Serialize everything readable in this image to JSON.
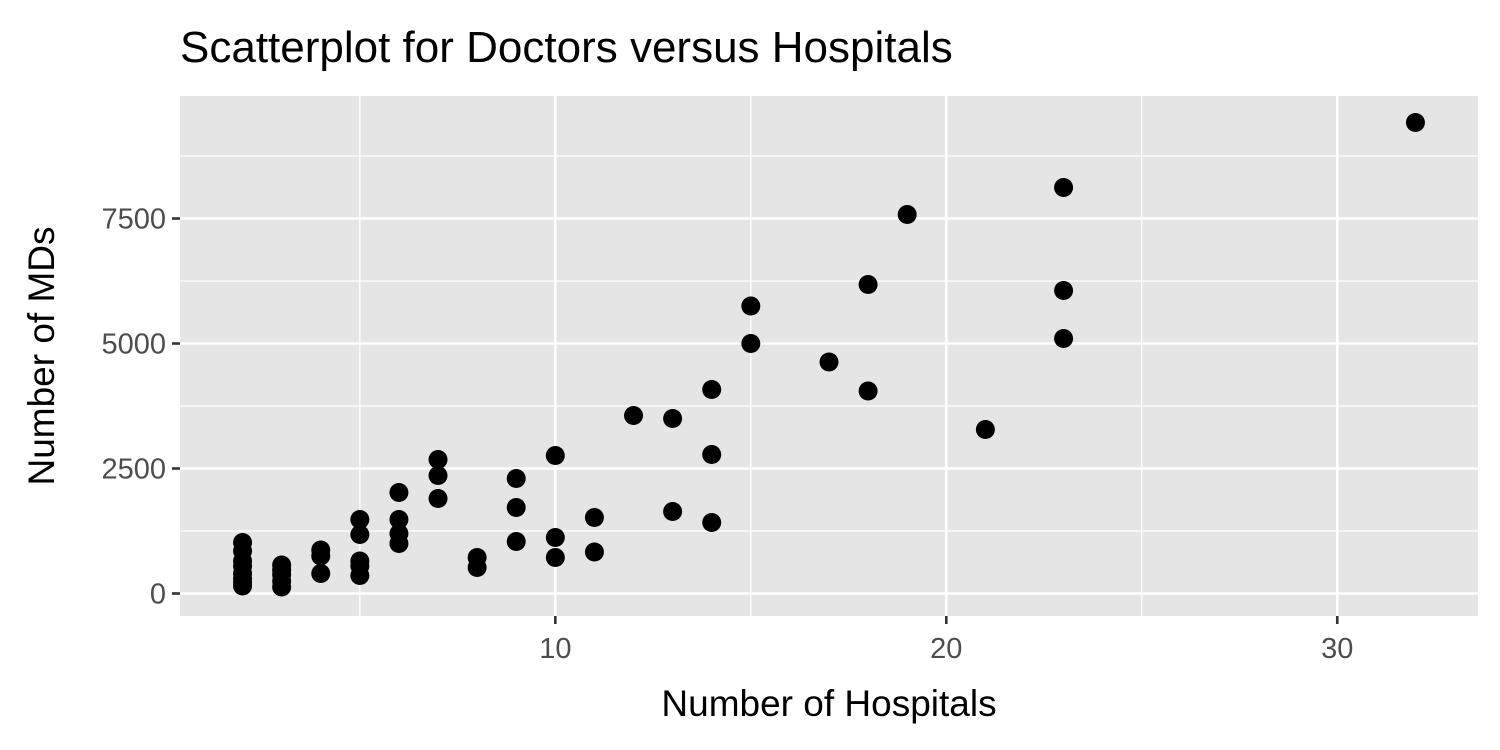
{
  "chart_data": {
    "type": "scatter",
    "title": "Scatterplot for Doctors versus Hospitals",
    "xlabel": "Number of Hospitals",
    "ylabel": "Number of MDs",
    "xlim": [
      0.4,
      33.6
    ],
    "ylim": [
      -450,
      9950
    ],
    "x_ticks": [
      10,
      20,
      30
    ],
    "x_minor_ticks": [
      5,
      15,
      25
    ],
    "y_ticks": [
      0,
      2500,
      5000,
      7500
    ],
    "y_minor_ticks": [
      1250,
      3750,
      6250,
      8750
    ],
    "grid": true,
    "point_color": "#000000",
    "panel_color": "#e5e5e5",
    "points": [
      {
        "x": 2,
        "y": 150
      },
      {
        "x": 2,
        "y": 220
      },
      {
        "x": 2,
        "y": 300
      },
      {
        "x": 2,
        "y": 400
      },
      {
        "x": 2,
        "y": 550
      },
      {
        "x": 2,
        "y": 650
      },
      {
        "x": 2,
        "y": 850
      },
      {
        "x": 2,
        "y": 1020
      },
      {
        "x": 3,
        "y": 130
      },
      {
        "x": 3,
        "y": 250
      },
      {
        "x": 3,
        "y": 380
      },
      {
        "x": 3,
        "y": 470
      },
      {
        "x": 3,
        "y": 570
      },
      {
        "x": 4,
        "y": 400
      },
      {
        "x": 4,
        "y": 750
      },
      {
        "x": 4,
        "y": 870
      },
      {
        "x": 5,
        "y": 360
      },
      {
        "x": 5,
        "y": 550
      },
      {
        "x": 5,
        "y": 650
      },
      {
        "x": 5,
        "y": 1180
      },
      {
        "x": 5,
        "y": 1480
      },
      {
        "x": 6,
        "y": 1000
      },
      {
        "x": 6,
        "y": 1200
      },
      {
        "x": 6,
        "y": 1480
      },
      {
        "x": 6,
        "y": 2020
      },
      {
        "x": 7,
        "y": 1900
      },
      {
        "x": 7,
        "y": 2360
      },
      {
        "x": 7,
        "y": 2680
      },
      {
        "x": 8,
        "y": 520
      },
      {
        "x": 8,
        "y": 720
      },
      {
        "x": 9,
        "y": 1040
      },
      {
        "x": 9,
        "y": 1720
      },
      {
        "x": 9,
        "y": 2300
      },
      {
        "x": 10,
        "y": 720
      },
      {
        "x": 10,
        "y": 1120
      },
      {
        "x": 10,
        "y": 2760
      },
      {
        "x": 11,
        "y": 830
      },
      {
        "x": 11,
        "y": 1520
      },
      {
        "x": 12,
        "y": 3560
      },
      {
        "x": 13,
        "y": 1640
      },
      {
        "x": 13,
        "y": 3500
      },
      {
        "x": 14,
        "y": 1420
      },
      {
        "x": 14,
        "y": 2780
      },
      {
        "x": 14,
        "y": 4080
      },
      {
        "x": 15,
        "y": 5000
      },
      {
        "x": 15,
        "y": 5750
      },
      {
        "x": 17,
        "y": 4630
      },
      {
        "x": 18,
        "y": 4050
      },
      {
        "x": 18,
        "y": 6180
      },
      {
        "x": 19,
        "y": 7580
      },
      {
        "x": 21,
        "y": 3280
      },
      {
        "x": 23,
        "y": 5100
      },
      {
        "x": 23,
        "y": 6060
      },
      {
        "x": 23,
        "y": 8120
      },
      {
        "x": 32,
        "y": 9420
      }
    ]
  }
}
